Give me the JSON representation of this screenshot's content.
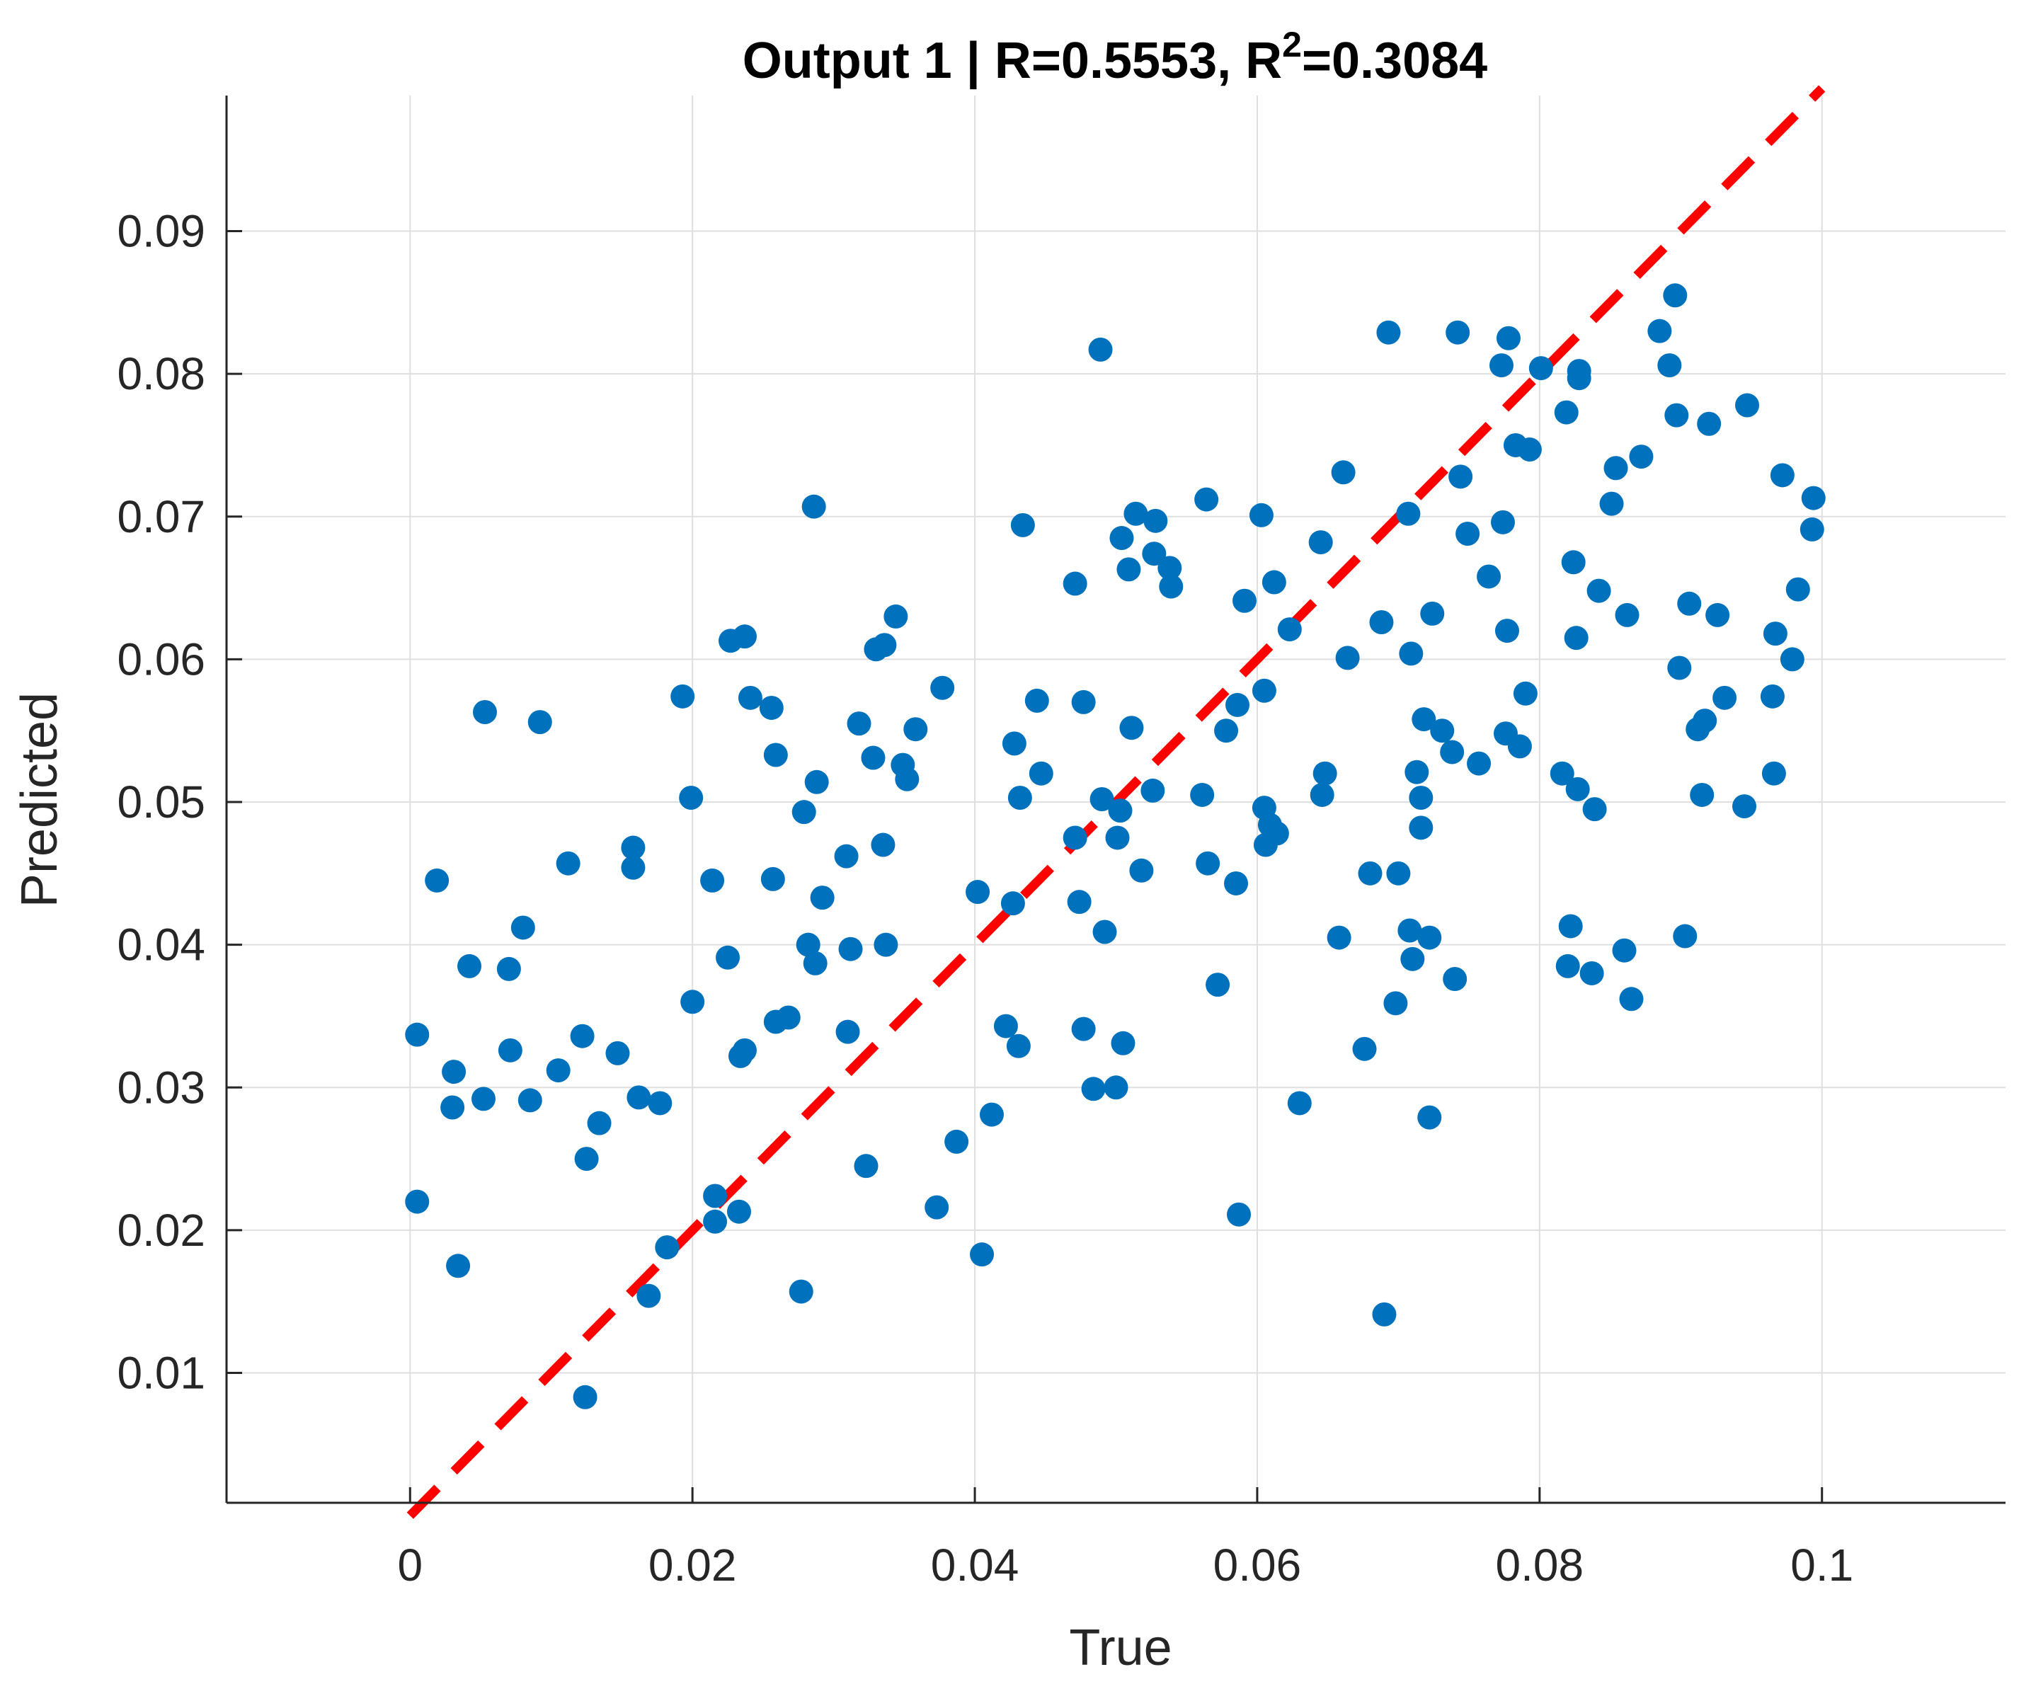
{
  "chart_data": {
    "type": "scatter",
    "title_main": "Output 1 | R=0.5553, R",
    "title_sup": "2",
    "title_tail": "=0.3084",
    "xlabel": "True",
    "ylabel": "Predicted",
    "xlim": [
      -0.013,
      0.113
    ],
    "ylim": [
      0.0009,
      0.0995
    ],
    "xticks": [
      0,
      0.02,
      0.04,
      0.06,
      0.08,
      0.1
    ],
    "xtick_labels": [
      "0",
      "0.02",
      "0.04",
      "0.06",
      "0.08",
      "0.1"
    ],
    "yticks": [
      0.01,
      0.02,
      0.03,
      0.04,
      0.05,
      0.06,
      0.07,
      0.08,
      0.09
    ],
    "ytick_labels": [
      "0.01",
      "0.02",
      "0.03",
      "0.04",
      "0.05",
      "0.06",
      "0.07",
      "0.08",
      "0.09"
    ],
    "grid": true,
    "colors": {
      "points": "#0072BD",
      "reference_line": "#FF0000",
      "axis": "#262626",
      "grid": "#DFDFDF"
    },
    "reference_line": {
      "style": "dashed",
      "x": [
        0,
        0.1
      ],
      "y": [
        0,
        0.1
      ]
    },
    "series": [
      {
        "points": [
          [
            0.0005,
            0.0337
          ],
          [
            0.0005,
            0.022
          ],
          [
            0.0019,
            0.0445
          ],
          [
            0.003,
            0.0286
          ],
          [
            0.0031,
            0.0311
          ],
          [
            0.0034,
            0.0175
          ],
          [
            0.0042,
            0.0385
          ],
          [
            0.0052,
            0.0292
          ],
          [
            0.0053,
            0.0563
          ],
          [
            0.007,
            0.0383
          ],
          [
            0.0071,
            0.0326
          ],
          [
            0.008,
            0.0412
          ],
          [
            0.0085,
            0.0291
          ],
          [
            0.0092,
            0.0556
          ],
          [
            0.0105,
            0.0312
          ],
          [
            0.0112,
            0.0457
          ],
          [
            0.0122,
            0.0336
          ],
          [
            0.0125,
            0.025
          ],
          [
            0.0124,
            0.0083
          ],
          [
            0.0134,
            0.0275
          ],
          [
            0.0147,
            0.0324
          ],
          [
            0.0158,
            0.0468
          ],
          [
            0.0158,
            0.0454
          ],
          [
            0.0162,
            0.0293
          ],
          [
            0.0169,
            0.0154
          ],
          [
            0.0177,
            0.0289
          ],
          [
            0.0182,
            0.0188
          ],
          [
            0.0193,
            0.0574
          ],
          [
            0.0199,
            0.0503
          ],
          [
            0.02,
            0.036
          ],
          [
            0.0214,
            0.0445
          ],
          [
            0.0216,
            0.0224
          ],
          [
            0.0216,
            0.0206
          ],
          [
            0.0225,
            0.0391
          ],
          [
            0.0227,
            0.0613
          ],
          [
            0.0233,
            0.0213
          ],
          [
            0.0234,
            0.0322
          ],
          [
            0.0237,
            0.0616
          ],
          [
            0.0237,
            0.0326
          ],
          [
            0.0241,
            0.0573
          ],
          [
            0.0256,
            0.0566
          ],
          [
            0.0257,
            0.0446
          ],
          [
            0.0259,
            0.0533
          ],
          [
            0.0259,
            0.0346
          ],
          [
            0.0268,
            0.0349
          ],
          [
            0.0277,
            0.0157
          ],
          [
            0.0279,
            0.0493
          ],
          [
            0.0282,
            0.04
          ],
          [
            0.0286,
            0.0707
          ],
          [
            0.0287,
            0.0387
          ],
          [
            0.0288,
            0.0514
          ],
          [
            0.0292,
            0.0433
          ],
          [
            0.0309,
            0.0462
          ],
          [
            0.031,
            0.0339
          ],
          [
            0.0312,
            0.0397
          ],
          [
            0.0318,
            0.0555
          ],
          [
            0.0323,
            0.0245
          ],
          [
            0.0328,
            0.0531
          ],
          [
            0.033,
            0.0607
          ],
          [
            0.0336,
            0.061
          ],
          [
            0.0335,
            0.047
          ],
          [
            0.0337,
            0.04
          ],
          [
            0.0344,
            0.063
          ],
          [
            0.0349,
            0.0526
          ],
          [
            0.0352,
            0.0516
          ],
          [
            0.0358,
            0.0551
          ],
          [
            0.0373,
            0.0216
          ],
          [
            0.0377,
            0.058
          ],
          [
            0.0387,
            0.0262
          ],
          [
            0.0402,
            0.0437
          ],
          [
            0.0405,
            0.0183
          ],
          [
            0.0412,
            0.0281
          ],
          [
            0.0422,
            0.0343
          ],
          [
            0.0427,
            0.0429
          ],
          [
            0.0428,
            0.0541
          ],
          [
            0.0431,
            0.0329
          ],
          [
            0.0432,
            0.0503
          ],
          [
            0.0434,
            0.0694
          ],
          [
            0.0444,
            0.0571
          ],
          [
            0.0447,
            0.052
          ],
          [
            0.0471,
            0.0653
          ],
          [
            0.0471,
            0.0475
          ],
          [
            0.0474,
            0.043
          ],
          [
            0.0477,
            0.057
          ],
          [
            0.0477,
            0.0341
          ],
          [
            0.0484,
            0.0299
          ],
          [
            0.0489,
            0.0817
          ],
          [
            0.049,
            0.0502
          ],
          [
            0.0492,
            0.0409
          ],
          [
            0.05,
            0.03
          ],
          [
            0.0501,
            0.0475
          ],
          [
            0.0503,
            0.0494
          ],
          [
            0.0504,
            0.0685
          ],
          [
            0.0505,
            0.0331
          ],
          [
            0.0509,
            0.0663
          ],
          [
            0.0511,
            0.0552
          ],
          [
            0.0514,
            0.0702
          ],
          [
            0.0518,
            0.0452
          ],
          [
            0.0526,
            0.0508
          ],
          [
            0.0527,
            0.0674
          ],
          [
            0.0528,
            0.0697
          ],
          [
            0.0538,
            0.0664
          ],
          [
            0.0539,
            0.0651
          ],
          [
            0.0561,
            0.0505
          ],
          [
            0.0564,
            0.0712
          ],
          [
            0.0565,
            0.0457
          ],
          [
            0.0572,
            0.0372
          ],
          [
            0.0578,
            0.055
          ],
          [
            0.0585,
            0.0443
          ],
          [
            0.0586,
            0.0568
          ],
          [
            0.0587,
            0.0211
          ],
          [
            0.0591,
            0.0641
          ],
          [
            0.0603,
            0.0701
          ],
          [
            0.0605,
            0.0578
          ],
          [
            0.0605,
            0.0496
          ],
          [
            0.0606,
            0.047
          ],
          [
            0.0609,
            0.0484
          ],
          [
            0.0612,
            0.0654
          ],
          [
            0.0614,
            0.0478
          ],
          [
            0.0623,
            0.0621
          ],
          [
            0.063,
            0.0289
          ],
          [
            0.0645,
            0.0682
          ],
          [
            0.0646,
            0.0505
          ],
          [
            0.0648,
            0.052
          ],
          [
            0.0658,
            0.0405
          ],
          [
            0.0661,
            0.0731
          ],
          [
            0.0664,
            0.0601
          ],
          [
            0.0676,
            0.0327
          ],
          [
            0.068,
            0.045
          ],
          [
            0.0688,
            0.0626
          ],
          [
            0.069,
            0.0141
          ],
          [
            0.0693,
            0.0829
          ],
          [
            0.0698,
            0.0359
          ],
          [
            0.07,
            0.045
          ],
          [
            0.0707,
            0.0702
          ],
          [
            0.0708,
            0.041
          ],
          [
            0.0709,
            0.0604
          ],
          [
            0.071,
            0.039
          ],
          [
            0.0713,
            0.0521
          ],
          [
            0.0716,
            0.0482
          ],
          [
            0.0716,
            0.0503
          ],
          [
            0.0718,
            0.0558
          ],
          [
            0.0722,
            0.0405
          ],
          [
            0.0722,
            0.0279
          ],
          [
            0.0724,
            0.0632
          ],
          [
            0.0731,
            0.055
          ],
          [
            0.0738,
            0.0535
          ],
          [
            0.074,
            0.0376
          ],
          [
            0.0742,
            0.0829
          ],
          [
            0.0744,
            0.0728
          ],
          [
            0.0749,
            0.0688
          ],
          [
            0.0757,
            0.0527
          ],
          [
            0.0764,
            0.0658
          ],
          [
            0.0773,
            0.0806
          ],
          [
            0.0774,
            0.0696
          ],
          [
            0.0776,
            0.0548
          ],
          [
            0.0777,
            0.062
          ],
          [
            0.0778,
            0.0825
          ],
          [
            0.0783,
            0.075
          ],
          [
            0.0786,
            0.0539
          ],
          [
            0.079,
            0.0576
          ],
          [
            0.0793,
            0.0747
          ],
          [
            0.0801,
            0.0804
          ],
          [
            0.0816,
            0.052
          ],
          [
            0.0819,
            0.0773
          ],
          [
            0.082,
            0.0385
          ],
          [
            0.0822,
            0.0413
          ],
          [
            0.0824,
            0.0668
          ],
          [
            0.0826,
            0.0615
          ],
          [
            0.0827,
            0.0509
          ],
          [
            0.0828,
            0.0802
          ],
          [
            0.0828,
            0.0797
          ],
          [
            0.0837,
            0.038
          ],
          [
            0.0839,
            0.0495
          ],
          [
            0.0842,
            0.0648
          ],
          [
            0.0851,
            0.0709
          ],
          [
            0.0854,
            0.0734
          ],
          [
            0.086,
            0.0396
          ],
          [
            0.0862,
            0.0631
          ],
          [
            0.0865,
            0.0362
          ],
          [
            0.0872,
            0.0742
          ],
          [
            0.0885,
            0.083
          ],
          [
            0.0892,
            0.0806
          ],
          [
            0.0896,
            0.0855
          ],
          [
            0.0897,
            0.0771
          ],
          [
            0.0899,
            0.0594
          ],
          [
            0.0903,
            0.0406
          ],
          [
            0.0906,
            0.0639
          ],
          [
            0.0912,
            0.0551
          ],
          [
            0.0915,
            0.0505
          ],
          [
            0.0917,
            0.0557
          ],
          [
            0.092,
            0.0765
          ],
          [
            0.0926,
            0.0631
          ],
          [
            0.0931,
            0.0573
          ],
          [
            0.0945,
            0.0497
          ],
          [
            0.0947,
            0.0778
          ],
          [
            0.0965,
            0.0574
          ],
          [
            0.0966,
            0.052
          ],
          [
            0.0967,
            0.0618
          ],
          [
            0.0972,
            0.0729
          ],
          [
            0.0979,
            0.06
          ],
          [
            0.0983,
            0.0649
          ],
          [
            0.0993,
            0.0691
          ],
          [
            0.0994,
            0.0713
          ]
        ]
      }
    ]
  }
}
